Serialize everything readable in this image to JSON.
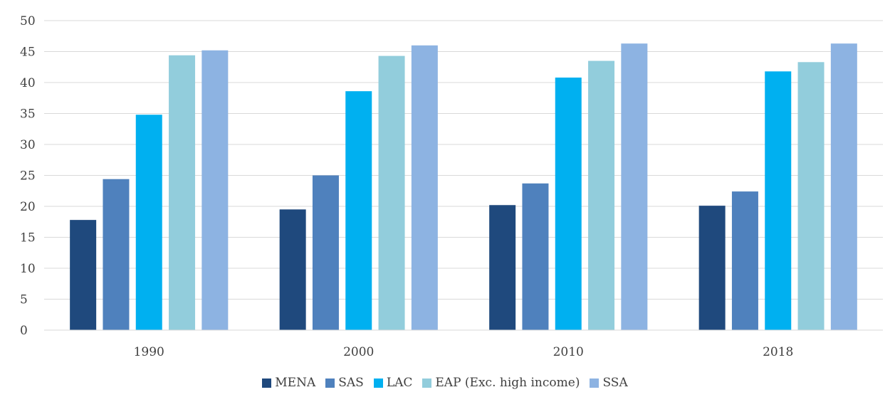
{
  "chart_data": {
    "type": "bar",
    "categories": [
      "1990",
      "2000",
      "2010",
      "2018"
    ],
    "series": [
      {
        "name": "MENA",
        "color": "#1f497d",
        "values": [
          17.8,
          19.5,
          20.2,
          20.1
        ]
      },
      {
        "name": "SAS",
        "color": "#4f81bd",
        "values": [
          24.4,
          25.0,
          23.7,
          22.4
        ]
      },
      {
        "name": "LAC",
        "color": "#00b0f0",
        "values": [
          34.8,
          38.6,
          40.8,
          41.8
        ]
      },
      {
        "name": "EAP (Exc. high income)",
        "color": "#92cddc",
        "values": [
          44.4,
          44.3,
          43.5,
          43.3
        ]
      },
      {
        "name": "SSA",
        "color": "#8db3e2",
        "values": [
          45.2,
          46.0,
          46.3,
          46.3
        ]
      }
    ],
    "ylim": [
      0,
      50
    ],
    "yticks": [
      0,
      5,
      10,
      15,
      20,
      25,
      30,
      35,
      40,
      45,
      50
    ],
    "grid": true,
    "legend_position": "bottom",
    "title": "",
    "xlabel": "",
    "ylabel": ""
  }
}
